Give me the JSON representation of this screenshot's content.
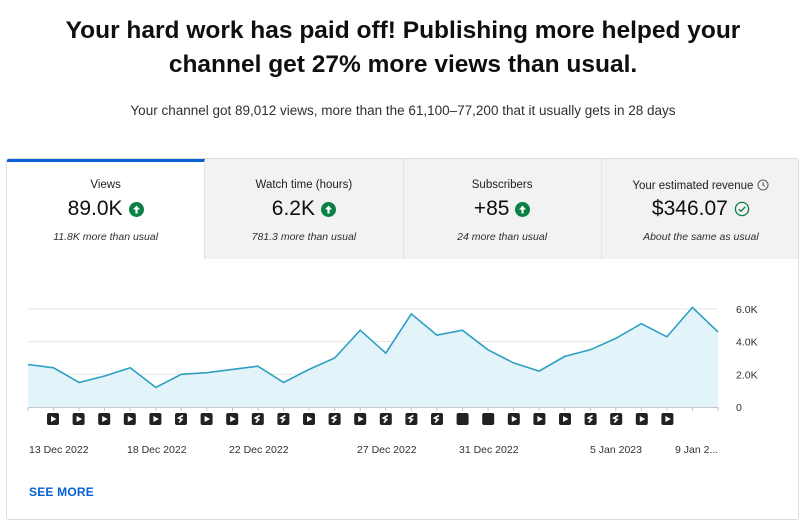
{
  "headline": {
    "line1": "Your hard work has paid off! Publishing more helped your",
    "line2": "channel get 27% more views than usual."
  },
  "subline": "Your channel got 89,012 views, more than the 61,100–77,200 that it usually gets in 28 days",
  "tabs": [
    {
      "label": "Views",
      "value": "89.0K",
      "sub": "11.8K more than usual",
      "indicator": "up-arrow-icon",
      "active": true
    },
    {
      "label": "Watch time (hours)",
      "value": "6.2K",
      "sub": "781.3 more than usual",
      "indicator": "up-arrow-icon",
      "active": false
    },
    {
      "label": "Subscribers",
      "value": "+85",
      "sub": "24 more than usual",
      "indicator": "up-arrow-icon",
      "active": false
    },
    {
      "label": "Your estimated revenue",
      "value": "$346.07",
      "sub": "About the same as usual",
      "indicator": "check-circle-icon",
      "active": false,
      "label_icon": "clock-icon"
    }
  ],
  "colors": {
    "accent": "#065fd4",
    "line": "#2d9fc3",
    "area": "#e2f3f9",
    "positive": "#0b8043"
  },
  "chart_data": {
    "type": "area",
    "y_ticks": [
      "6.0K",
      "4.0K",
      "2.0K",
      "0"
    ],
    "ylim": [
      0,
      6000
    ],
    "x_labels": [
      "13 Dec 2022",
      "18 Dec 2022",
      "22 Dec 2022",
      "27 Dec 2022",
      "31 Dec 2022",
      "5 Jan 2023",
      "9 Jan 2..."
    ],
    "series": [
      {
        "values": [
          2600,
          2400,
          1500,
          1900,
          2400,
          1200,
          2000,
          2100,
          2300,
          2500,
          1500,
          2300,
          3000,
          4700,
          3300,
          5700,
          4400,
          4700,
          3500,
          2700,
          2200,
          3100,
          3500,
          4200,
          5100,
          4300,
          6100,
          4600
        ]
      }
    ],
    "markers": [
      "video",
      "video",
      "video",
      "video",
      "video",
      "short",
      "video",
      "video",
      "short",
      "short",
      "video",
      "short",
      "video",
      "short",
      "short",
      "short",
      "premiere",
      "premiere",
      "video",
      "video",
      "video",
      "short",
      "short",
      "video",
      "video"
    ]
  },
  "see_more": "SEE MORE"
}
